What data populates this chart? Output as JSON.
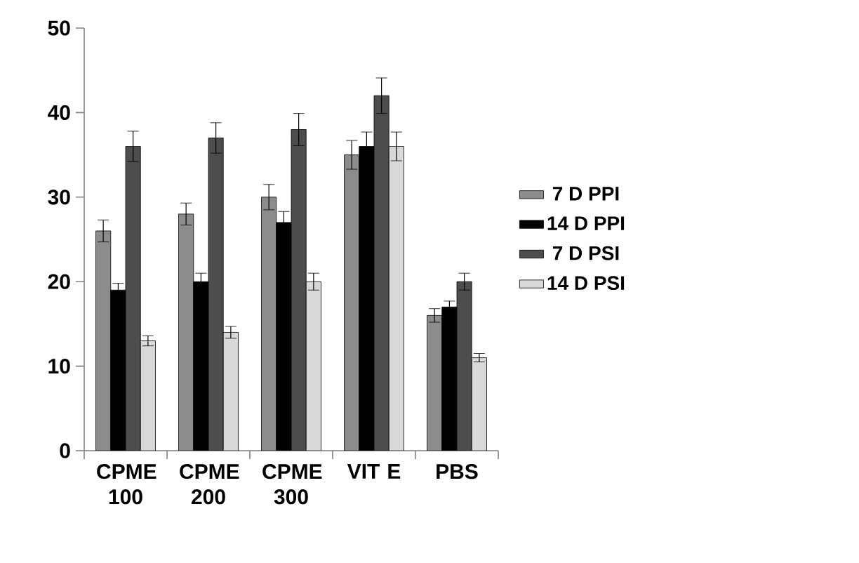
{
  "chart_data": {
    "type": "bar",
    "categories": [
      "CPME 100",
      "CPME 200",
      "CPME 300",
      "VIT E",
      "PBS"
    ],
    "series": [
      {
        "name": "7 D PPI",
        "color": "#8c8c8c",
        "values": [
          26,
          28,
          30,
          35,
          16
        ],
        "errors": [
          1.3,
          1.3,
          1.5,
          1.7,
          0.8
        ]
      },
      {
        "name": "14 D PPI",
        "color": "#000000",
        "values": [
          19,
          20,
          27,
          36,
          17
        ],
        "errors": [
          0.8,
          1,
          1.3,
          1.7,
          0.7
        ]
      },
      {
        "name": "7 D PSI",
        "color": "#4d4d4d",
        "values": [
          36,
          37,
          38,
          42,
          20
        ],
        "errors": [
          1.8,
          1.8,
          1.9,
          2.1,
          1
        ]
      },
      {
        "name": "14 D PSI",
        "color": "#d9d9d9",
        "values": [
          13,
          14,
          20,
          36,
          11
        ],
        "errors": [
          0.6,
          0.7,
          1,
          1.7,
          0.5
        ]
      }
    ],
    "ylim": [
      0,
      50
    ],
    "yticks": [
      0,
      10,
      20,
      30,
      40,
      50
    ],
    "grid": false,
    "legend": "right"
  }
}
